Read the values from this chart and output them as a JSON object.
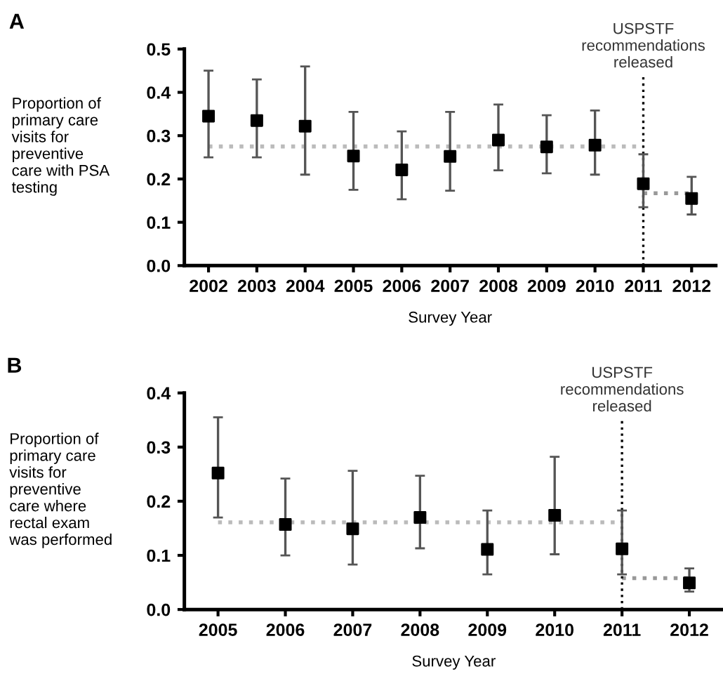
{
  "chart_data": [
    {
      "type": "scatter",
      "title": "A",
      "xlabel": "Survey Year",
      "ylabel": "Proportion of\nprimary care\nvisits for\npreventive\ncare with PSA\ntesting",
      "categories": [
        "2002",
        "2003",
        "2004",
        "2005",
        "2006",
        "2007",
        "2008",
        "2009",
        "2010",
        "2011",
        "2012"
      ],
      "series": [
        {
          "color": "#000000",
          "marker": "square",
          "values": [
            0.345,
            0.335,
            0.322,
            0.253,
            0.221,
            0.252,
            0.29,
            0.274,
            0.278,
            0.189,
            0.155
          ],
          "errors": [
            [
              0.25,
              0.45
            ],
            [
              0.25,
              0.43
            ],
            [
              0.21,
              0.46
            ],
            [
              0.175,
              0.355
            ],
            [
              0.153,
              0.31
            ],
            [
              0.173,
              0.355
            ],
            [
              0.22,
              0.372
            ],
            [
              0.213,
              0.347
            ],
            [
              0.21,
              0.358
            ],
            [
              0.135,
              0.257
            ],
            [
              0.118,
              0.205
            ]
          ]
        },
        {
          "type": "line",
          "color": "#bbbbbb",
          "line_style": "dotted",
          "values": [
            0.275,
            0.275,
            0.275,
            0.275,
            0.275,
            0.275,
            0.275,
            0.275,
            0.275,
            0.275,
            null
          ]
        },
        {
          "type": "line",
          "color": "#999999",
          "line_style": "dotted",
          "values": [
            null,
            null,
            null,
            null,
            null,
            null,
            null,
            null,
            null,
            0.167,
            0.167
          ]
        }
      ],
      "ref_lines": [
        {
          "axis": "x",
          "value": "2011",
          "label": "USPSTF\nrecommendations\nreleased",
          "color": "#000000",
          "line_style": "dotted"
        }
      ],
      "ylim": [
        0,
        0.5
      ],
      "yticks": [
        {
          "value": 0,
          "label": "0.0"
        },
        0.1,
        0.2,
        0.3,
        0.4,
        0.5
      ],
      "grid": false,
      "legend": false
    },
    {
      "type": "scatter",
      "title": "B",
      "xlabel": "Survey Year",
      "ylabel": "Proportion of\nprimary care\nvisits for\npreventive\ncare where\nrectal exam\nwas performed",
      "categories": [
        "2005",
        "2006",
        "2007",
        "2008",
        "2009",
        "2010",
        "2011",
        "2012"
      ],
      "series": [
        {
          "color": "#000000",
          "marker": "square",
          "values": [
            0.252,
            0.157,
            0.149,
            0.17,
            0.111,
            0.174,
            0.112,
            0.049
          ],
          "errors": [
            [
              0.17,
              0.355
            ],
            [
              0.1,
              0.242
            ],
            [
              0.083,
              0.256
            ],
            [
              0.113,
              0.247
            ],
            [
              0.065,
              0.183
            ],
            [
              0.102,
              0.282
            ],
            [
              0.065,
              0.183
            ],
            [
              0.033,
              0.076
            ]
          ]
        },
        {
          "type": "line",
          "color": "#bbbbbb",
          "line_style": "dotted",
          "values": [
            0.161,
            0.161,
            0.161,
            0.161,
            0.161,
            0.161,
            0.161,
            null
          ]
        },
        {
          "type": "line",
          "color": "#999999",
          "line_style": "dotted",
          "values": [
            null,
            null,
            null,
            null,
            null,
            null,
            0.058,
            0.058
          ]
        }
      ],
      "ref_lines": [
        {
          "axis": "x",
          "value": "2011",
          "label": "USPSTF\nrecommendations\nreleased",
          "color": "#000000",
          "line_style": "dotted"
        }
      ],
      "ylim": [
        0,
        0.4
      ],
      "yticks": [
        {
          "value": 0,
          "label": "0.0"
        },
        0.1,
        0.2,
        0.3,
        0.4
      ],
      "grid": false,
      "legend": false
    }
  ]
}
